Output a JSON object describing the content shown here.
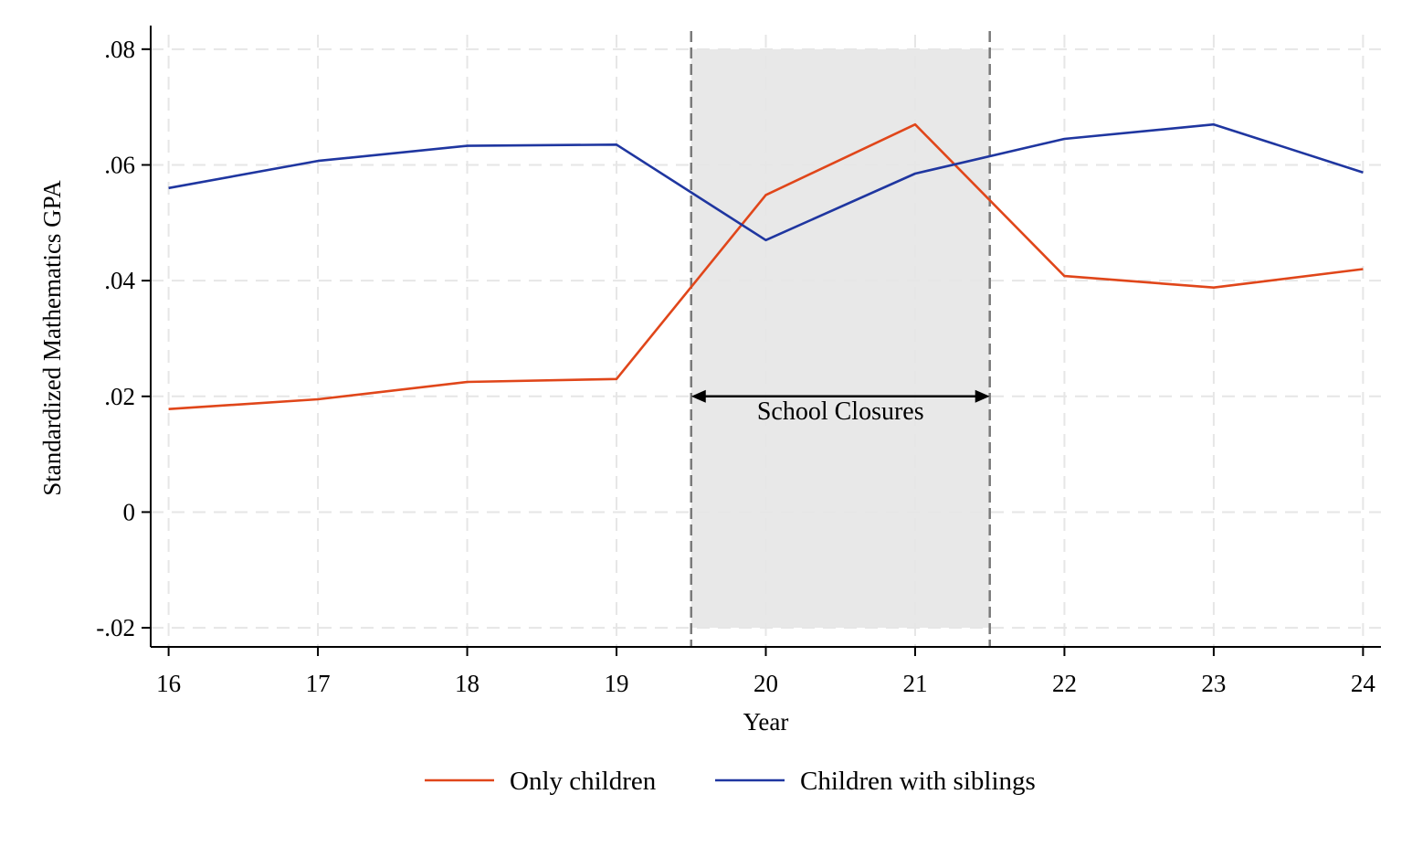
{
  "chart_data": {
    "type": "line",
    "title": "",
    "xlabel": "Year",
    "ylabel": "Standardized Mathematics GPA",
    "x": [
      16,
      17,
      18,
      19,
      20,
      21,
      22,
      23,
      24
    ],
    "x_tick_labels": [
      "16",
      "17",
      "18",
      "19",
      "20",
      "21",
      "22",
      "23",
      "24"
    ],
    "y_ticks": [
      -0.02,
      0,
      0.02,
      0.04,
      0.06,
      0.08
    ],
    "y_tick_labels": [
      "-.02",
      "0",
      ".02",
      ".04",
      ".06",
      ".08"
    ],
    "xlim": [
      15.88,
      24.12
    ],
    "ylim": [
      -0.0233,
      0.0825
    ],
    "grid": true,
    "legend_position": "bottom",
    "series": [
      {
        "name": "Only children",
        "color": "#e0461a",
        "values": [
          0.0178,
          0.0195,
          0.0225,
          0.023,
          0.0548,
          0.067,
          0.0408,
          0.0388,
          0.042
        ]
      },
      {
        "name": "Children with siblings",
        "color": "#1f36a0",
        "values": [
          0.056,
          0.0607,
          0.0633,
          0.0635,
          0.047,
          0.0585,
          0.0645,
          0.067,
          0.0587
        ]
      }
    ],
    "annotations": [
      {
        "type": "shaded_region",
        "x_start": 19.5,
        "x_end": 21.5,
        "y_start": -0.02,
        "y_end": 0.08,
        "color": "#e8e8e8",
        "label": "School Closures",
        "arrow_y": 0.02
      }
    ]
  }
}
